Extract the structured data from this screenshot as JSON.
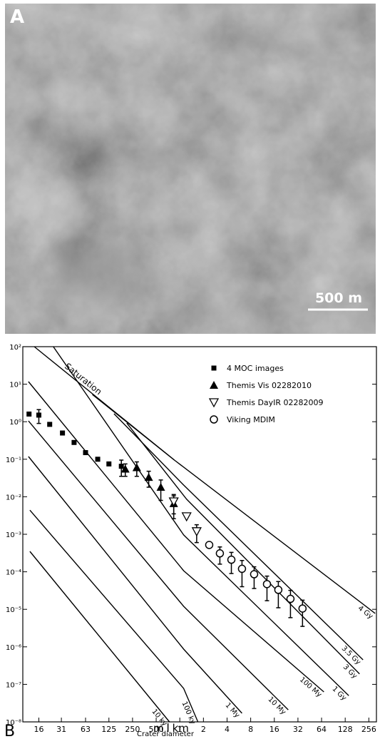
{
  "panel_a": {
    "label": "A",
    "scale_bar": "500 m"
  },
  "chart_data": {
    "type": "scatter",
    "panel_label": "B",
    "xlabel": "Crater diameter",
    "unit_labels": [
      "m",
      "km"
    ],
    "xscale": "log",
    "yscale": "log",
    "xlim": [
      10,
      320000
    ],
    "ylim": [
      1e-08,
      100
    ],
    "xticks": [
      16,
      31,
      63,
      125,
      250,
      500,
      {
        "value": 1000,
        "label": "1"
      },
      {
        "value": 2000,
        "label": "2"
      },
      {
        "value": 4000,
        "label": "4"
      },
      {
        "value": 8000,
        "label": "8"
      },
      {
        "value": 16000,
        "label": "16"
      },
      {
        "value": 32000,
        "label": "32"
      },
      {
        "value": 64000,
        "label": "64"
      },
      {
        "value": 128000,
        "label": "128"
      },
      {
        "value": 256000,
        "label": "256"
      }
    ],
    "yticks": [
      {
        "value": 100,
        "label": "10²"
      },
      {
        "value": 10,
        "label": "10¹"
      },
      {
        "value": 1,
        "label": "10⁰"
      },
      {
        "value": 0.1,
        "label": "10⁻¹"
      },
      {
        "value": 0.01,
        "label": "10⁻²"
      },
      {
        "value": 0.001,
        "label": "10⁻³"
      },
      {
        "value": 0.0001,
        "label": "10⁻⁴"
      },
      {
        "value": 1e-05,
        "label": "10⁻⁵"
      },
      {
        "value": 1e-06,
        "label": "10⁻⁶"
      },
      {
        "value": 1e-07,
        "label": "10⁻⁷"
      },
      {
        "value": 1e-08,
        "label": "10⁻⁸"
      }
    ],
    "legend": "upper right",
    "series": [
      {
        "name": "4 MOC images",
        "marker": "square",
        "color": "#000000",
        "x": [
          12,
          16,
          22,
          32,
          45,
          63,
          90,
          125,
          180
        ],
        "values": [
          1.6,
          1.5,
          0.85,
          0.5,
          0.28,
          0.15,
          0.1,
          0.075,
          0.065
        ],
        "errors": [
          null,
          0.6,
          null,
          null,
          null,
          null,
          null,
          null,
          0.03
        ]
      },
      {
        "name": "Themis Vis 02282010",
        "marker": "triangle-up",
        "color": "#000000",
        "x": [
          202,
          283,
          402,
          573,
          837
        ],
        "values": [
          0.055,
          0.06,
          0.033,
          0.018,
          0.0066
        ],
        "errors": [
          0.02,
          0.025,
          0.015,
          0.01,
          0.004
        ]
      },
      {
        "name": "Themis DayIR 02282009",
        "marker": "triangle-down",
        "color": "#000000",
        "x": [
          837,
          1220,
          1640
        ],
        "values": [
          0.0075,
          0.003,
          0.0012
        ],
        "errors": [
          0.004,
          null,
          0.0006
        ]
      },
      {
        "name": "Viking MDIM",
        "marker": "circle",
        "color": "#000000",
        "x": [
          2370,
          3240,
          4540,
          6200,
          8850,
          12900,
          18000,
          25700,
          36600
        ],
        "values": [
          0.00052,
          0.00031,
          0.00021,
          0.00012,
          8.6e-05,
          4.7e-05,
          3.3e-05,
          1.9e-05,
          1.05e-05
        ],
        "errors": [
          null,
          0.00015,
          0.00012,
          8e-05,
          5e-05,
          3e-05,
          2.2e-05,
          1.3e-05,
          7e-06
        ]
      }
    ],
    "isochrons": [
      {
        "name": "Saturation",
        "x": [
          14,
          854
        ],
        "values": [
          100,
          0.095
        ]
      },
      {
        "name": "4 Gy",
        "x": [
          77,
          854,
          308000
        ],
        "values": [
          5.3,
          0.095,
          7.8e-06
        ]
      },
      {
        "name": "3.5 Gy",
        "x": [
          145,
          1120,
          216000
        ],
        "values": [
          1.63,
          0.0205,
          4.5e-07
        ]
      },
      {
        "name": "3 Gy",
        "x": [
          211,
          1220,
          195000
        ],
        "values": [
          0.92,
          0.0086,
          1.9e-07
        ]
      },
      {
        "name": "1 Gy",
        "x": [
          24.5,
          1120,
          142000
        ],
        "values": [
          100,
          0.00096,
          5e-08
        ]
      },
      {
        "name": "100 My",
        "x": [
          11.8,
          1120,
          68500
        ],
        "values": [
          11.7,
          0.000107,
          6.3e-08
        ]
      },
      {
        "name": "10 My",
        "x": [
          11.8,
          1120,
          24100
        ],
        "values": [
          1.05,
          1.2e-05,
          2.1e-08
        ]
      },
      {
        "name": "1 My",
        "x": [
          11.8,
          1120,
          6200
        ],
        "values": [
          0.118,
          8.7e-07,
          1.7e-08
        ]
      },
      {
        "name": "100 ky",
        "x": [
          12.3,
          1120,
          1700
        ],
        "values": [
          0.0044,
          7.8e-08,
          1e-08
        ]
      },
      {
        "name": "10 ky",
        "x": [
          12.3,
          738
        ],
        "values": [
          0.00035,
          1e-08
        ]
      }
    ],
    "color": "#000000"
  }
}
